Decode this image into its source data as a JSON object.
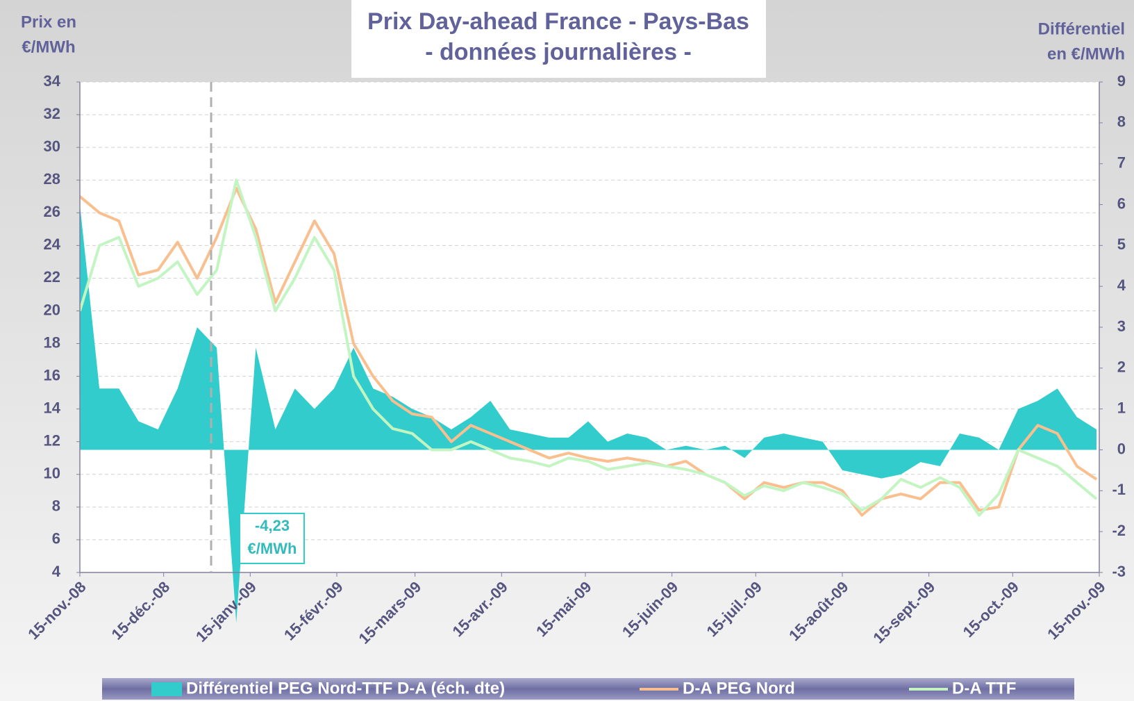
{
  "chart_data": {
    "type": "line",
    "title": [
      "Prix Day-ahead France - Pays-Bas",
      "- données journalières -"
    ],
    "y_axis_label": [
      "Prix en",
      "€/MWh"
    ],
    "y2_axis_label": [
      "Différentiel",
      "en €/MWh"
    ],
    "annotation": [
      "-4,23",
      "€/MWh"
    ],
    "reference_line_x": "2009-01-01",
    "x": [
      "2008-11-15",
      "2008-11-22",
      "2008-11-29",
      "2008-12-06",
      "2008-12-13",
      "2008-12-20",
      "2008-12-27",
      "2009-01-03",
      "2009-01-10",
      "2009-01-17",
      "2009-01-24",
      "2009-01-31",
      "2009-02-07",
      "2009-02-14",
      "2009-02-21",
      "2009-02-28",
      "2009-03-07",
      "2009-03-14",
      "2009-03-21",
      "2009-03-28",
      "2009-04-04",
      "2009-04-11",
      "2009-04-18",
      "2009-04-25",
      "2009-05-02",
      "2009-05-09",
      "2009-05-16",
      "2009-05-23",
      "2009-05-30",
      "2009-06-06",
      "2009-06-13",
      "2009-06-20",
      "2009-06-27",
      "2009-07-04",
      "2009-07-11",
      "2009-07-18",
      "2009-07-25",
      "2009-08-01",
      "2009-08-08",
      "2009-08-15",
      "2009-08-22",
      "2009-08-29",
      "2009-09-05",
      "2009-09-12",
      "2009-09-19",
      "2009-09-26",
      "2009-10-03",
      "2009-10-10",
      "2009-10-17",
      "2009-10-24",
      "2009-10-31",
      "2009-11-07",
      "2009-11-14"
    ],
    "series": [
      {
        "name": "Différentiel PEG Nord-TTF D-A (éch. dte)",
        "color": "#33cccc",
        "kind": "area",
        "axis": "y2",
        "values": [
          6,
          1.5,
          1.5,
          0.7,
          0.5,
          1.5,
          3,
          2.5,
          -4.23,
          2.5,
          0.5,
          1.5,
          1,
          1.5,
          2.5,
          1.5,
          1.3,
          1,
          0.8,
          0.5,
          0.8,
          1.2,
          0.5,
          0.4,
          0.3,
          0.3,
          0.7,
          0.2,
          0.4,
          0.3,
          0,
          0.1,
          0,
          0.1,
          -0.2,
          0.3,
          0.4,
          0.3,
          0.2,
          -0.5,
          -0.6,
          -0.7,
          -0.6,
          -0.3,
          -0.4,
          0.4,
          0.3,
          0,
          1,
          1.2,
          1.5,
          0.8,
          0.5
        ]
      },
      {
        "name": "D-A PEG Nord",
        "color": "#f9bf8f",
        "kind": "line",
        "values": [
          27,
          26,
          25.5,
          22.2,
          22.5,
          24.2,
          22,
          24.5,
          27.5,
          25,
          20.5,
          23,
          25.5,
          23.5,
          18,
          16,
          14.5,
          13.7,
          13.5,
          12,
          13,
          12.5,
          12,
          11.5,
          11,
          11.3,
          11,
          10.8,
          11,
          10.8,
          10.5,
          10.8,
          10,
          9.5,
          8.5,
          9.5,
          9.2,
          9.5,
          9.5,
          9,
          7.5,
          8.5,
          8.8,
          8.5,
          9.5,
          9.5,
          7.8,
          8,
          11.5,
          13,
          12.5,
          10.5,
          9.7
        ]
      },
      {
        "name": "D-A TTF",
        "color": "#c3f5c3",
        "kind": "line",
        "values": [
          20,
          24,
          24.5,
          21.5,
          22,
          23,
          21,
          22.5,
          28,
          24.5,
          20,
          22,
          24.5,
          22.5,
          16,
          14,
          12.8,
          12.5,
          11.5,
          11.5,
          12,
          11.5,
          11,
          10.8,
          10.5,
          11,
          10.8,
          10.3,
          10.5,
          10.7,
          10.5,
          10.3,
          10,
          9.5,
          8.7,
          9.3,
          9,
          9.5,
          9.2,
          8.8,
          7.8,
          8.5,
          9.7,
          9.2,
          9.8,
          9.2,
          7.5,
          8.8,
          11.5,
          11,
          10.5,
          9.5,
          8.5
        ]
      }
    ],
    "xlim": [
      "2008-11-15",
      "2009-11-15"
    ],
    "xticks": [
      {
        "value": "2008-11-15",
        "label": "15-nov.-08"
      },
      {
        "value": "2008-12-15",
        "label": "15-déc.-08"
      },
      {
        "value": "2009-01-15",
        "label": "15-janv.-09"
      },
      {
        "value": "2009-02-15",
        "label": "15-févr.-09"
      },
      {
        "value": "2009-03-15",
        "label": "15-mars-09"
      },
      {
        "value": "2009-04-15",
        "label": "15-avr.-09"
      },
      {
        "value": "2009-05-15",
        "label": "15-mai-09"
      },
      {
        "value": "2009-06-15",
        "label": "15-juin-09"
      },
      {
        "value": "2009-07-15",
        "label": "15-juil.-09"
      },
      {
        "value": "2009-08-15",
        "label": "15-août-09"
      },
      {
        "value": "2009-09-15",
        "label": "15-sept.-09"
      },
      {
        "value": "2009-10-15",
        "label": "15-oct.-09"
      },
      {
        "value": "2009-11-15",
        "label": "15-nov.-09"
      }
    ],
    "ylim": [
      4,
      34
    ],
    "yticks": [
      4,
      6,
      8,
      10,
      12,
      14,
      16,
      18,
      20,
      22,
      24,
      26,
      28,
      30,
      32,
      34
    ],
    "y2lim": [
      -3,
      9
    ],
    "y2ticks": [
      -3,
      -2,
      -1,
      0,
      1,
      2,
      3,
      4,
      5,
      6,
      7,
      8,
      9
    ],
    "grid": true,
    "legend": "bottom"
  }
}
